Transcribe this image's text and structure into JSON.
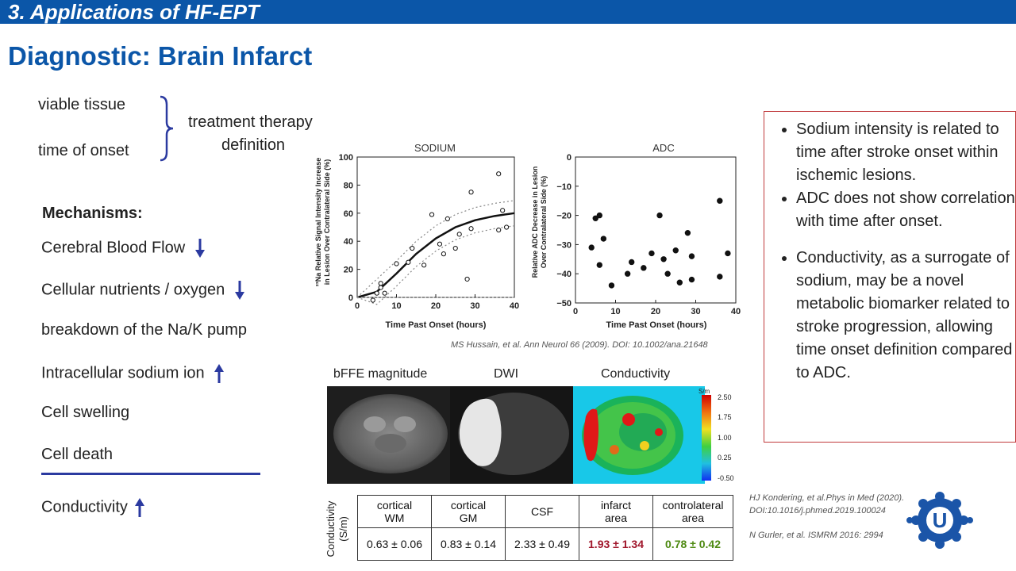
{
  "header": {
    "title": "3. Applications of HF-EPT"
  },
  "page_title": "Diagnostic: Brain Infarct",
  "left": {
    "viable": "viable tissue",
    "onset": "time of onset",
    "treatment_line1": "treatment therapy",
    "treatment_line2": "definition",
    "mechanisms_label": "Mechanisms:",
    "items": [
      {
        "label": "Cerebral Blood Flow",
        "arrow": "down"
      },
      {
        "label": "Cellular nutrients / oxygen",
        "arrow": "down"
      },
      {
        "label": "breakdown of the Na/K pump",
        "arrow": ""
      },
      {
        "label": "Intracellular sodium ion",
        "arrow": "up"
      },
      {
        "label": "Cell swelling",
        "arrow": ""
      },
      {
        "label": "Cell death",
        "arrow": ""
      }
    ],
    "conductivity": "Conductivity"
  },
  "sodium_chart": {
    "title": "SODIUM",
    "ylabel_line1": "²³Na Relative Signal Intensity Increase",
    "ylabel_line2": "in Lesion Over Contralateral Side (%)",
    "xlabel": "Time Past Onset (hours)",
    "xticks": [
      "0",
      "10",
      "20",
      "30",
      "40"
    ],
    "yticks": [
      "0",
      "20",
      "40",
      "60",
      "80",
      "100"
    ]
  },
  "adc_chart": {
    "title": "ADC",
    "ylabel_line1": "Relative ADC Decrease in Lesion",
    "ylabel_line2": "Over Contralateral Side (%)",
    "xlabel": "Time Past Onset (hours)",
    "xticks": [
      "0",
      "10",
      "20",
      "30",
      "40"
    ],
    "yticks": [
      "0",
      "−10",
      "−20",
      "−30",
      "−40",
      "−50"
    ]
  },
  "chart_data": [
    {
      "type": "scatter",
      "title": "SODIUM",
      "xlabel": "Time Past Onset (hours)",
      "ylabel": "²³Na Relative Signal Intensity Increase in Lesion Over Contralateral Side (%)",
      "xlim": [
        0,
        40
      ],
      "ylim": [
        0,
        100
      ],
      "points": [
        [
          4,
          -2
        ],
        [
          5,
          3
        ],
        [
          6,
          10
        ],
        [
          6,
          7
        ],
        [
          7,
          3
        ],
        [
          10,
          24
        ],
        [
          13,
          25
        ],
        [
          14,
          35
        ],
        [
          17,
          23
        ],
        [
          19,
          59
        ],
        [
          21,
          38
        ],
        [
          22,
          31
        ],
        [
          23,
          56
        ],
        [
          25,
          35
        ],
        [
          26,
          45
        ],
        [
          28,
          13
        ],
        [
          29,
          49
        ],
        [
          29,
          75
        ],
        [
          36,
          88
        ],
        [
          37,
          62
        ],
        [
          36,
          48
        ],
        [
          38,
          50
        ]
      ],
      "fit_curve": [
        [
          0,
          0
        ],
        [
          5,
          4
        ],
        [
          10,
          17
        ],
        [
          15,
          31
        ],
        [
          20,
          42
        ],
        [
          25,
          50
        ],
        [
          30,
          55
        ],
        [
          35,
          58
        ],
        [
          40,
          60
        ]
      ]
    },
    {
      "type": "scatter",
      "title": "ADC",
      "xlabel": "Time Past Onset (hours)",
      "ylabel": "Relative ADC Decrease in Lesion Over Contralateral Side (%)",
      "xlim": [
        0,
        40
      ],
      "ylim": [
        -50,
        0
      ],
      "points": [
        [
          4,
          -31
        ],
        [
          5,
          -21
        ],
        [
          6,
          -20
        ],
        [
          6,
          -37
        ],
        [
          7,
          -28
        ],
        [
          9,
          -44
        ],
        [
          13,
          -40
        ],
        [
          14,
          -36
        ],
        [
          17,
          -38
        ],
        [
          19,
          -33
        ],
        [
          21,
          -20
        ],
        [
          22,
          -35
        ],
        [
          23,
          -40
        ],
        [
          25,
          -32
        ],
        [
          26,
          -43
        ],
        [
          28,
          -26
        ],
        [
          29,
          -42
        ],
        [
          29,
          -34
        ],
        [
          36,
          -15
        ],
        [
          36,
          -41
        ],
        [
          38,
          -33
        ]
      ]
    }
  ],
  "chart_citation": "MS Hussain, et al. Ann Neurol 66 (2009). DOI: 10.1002/ana.21648",
  "images": {
    "labels": [
      "bFFE magnitude",
      "DWI",
      "Conductivity"
    ],
    "colorbar_unit": "S/m",
    "colorbar_ticks": [
      "2.50",
      "1.75",
      "1.00",
      "0.25",
      "-0.50"
    ]
  },
  "table": {
    "rowlabel_line1": "Conductivity",
    "rowlabel_line2": "(S/m)",
    "headers": [
      [
        "cortical",
        "WM"
      ],
      [
        "cortical",
        "GM"
      ],
      [
        "CSF",
        ""
      ],
      [
        "infarct",
        "area"
      ],
      [
        "controlateral",
        "area"
      ]
    ],
    "values": [
      "0.63 ± 0.06",
      "0.83 ± 0.14",
      "2.33 ± 0.49",
      "1.93 ± 1.34",
      "0.78 ± 0.42"
    ],
    "colors": [
      "#222222",
      "#222222",
      "#222222",
      "#a0162b",
      "#4e8a12"
    ]
  },
  "box": {
    "b1": "Sodium intensity is related to time after stroke onset within ischemic lesions.",
    "b2": "ADC does not show correlation with time after onset.",
    "b3": "Conductivity, as a surrogate of sodium, may be a novel metabolic biomarker related to stroke progression, allowing time onset definition compared to ADC."
  },
  "refs": {
    "r1_line1": "HJ Kondering, et al.Phys in Med (2020).",
    "r1_line2": "DOI:10.1016/j.phmed.2019.100024",
    "r2": "N Gurler, et al. ISMRM 2016: 2994"
  },
  "logo": {
    "letter": "U"
  }
}
